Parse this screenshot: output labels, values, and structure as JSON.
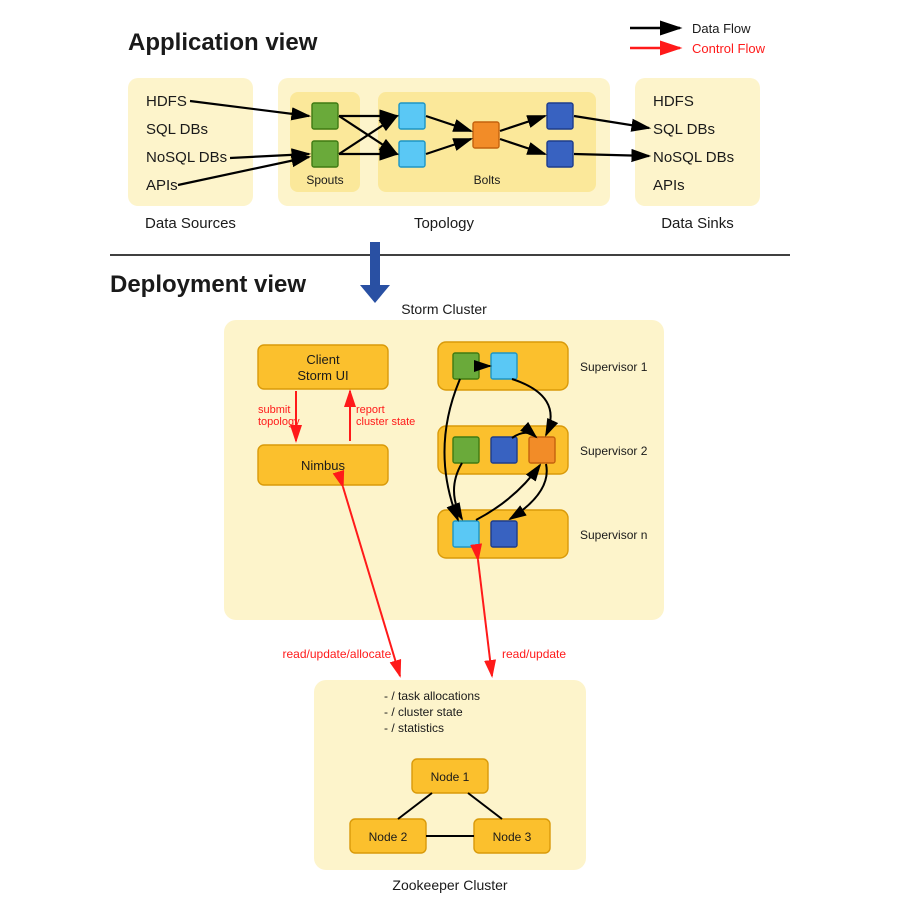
{
  "colors": {
    "boxLight": "#fdf4cb",
    "boxMid": "#fbe89a",
    "boxDark": "#fbc02d",
    "boxDarkStroke": "#d99a0a",
    "green": "#6aaa3a",
    "greenStroke": "#3f7a13",
    "cyan": "#5ac8f5",
    "cyanStroke": "#1d96c5",
    "orange": "#f28c28",
    "orangeStroke": "#c4620e",
    "blue": "#3862c1",
    "blueStroke": "#1d3c8d",
    "black": "#000000",
    "red": "#ff1a1a",
    "bigArrow": "#2950a3",
    "text": "#1a1a1a"
  },
  "legend": {
    "data": "Data Flow",
    "control": "Control Flow"
  },
  "titles": {
    "app": "Application view",
    "dep": "Deployment view"
  },
  "appView": {
    "dataSourcesLabel": "Data Sources",
    "topologyLabel": "Topology",
    "dataSinksLabel": "Data Sinks",
    "spoutsLabel": "Spouts",
    "boltsLabel": "Bolts",
    "sources": [
      "HDFS",
      "SQL DBs",
      "NoSQL DBs",
      "APIs"
    ],
    "sinks": [
      "HDFS",
      "SQL DBs",
      "NoSQL DBs",
      "APIs"
    ]
  },
  "storm": {
    "title": "Storm Cluster",
    "client": [
      "Client",
      "Storm UI"
    ],
    "nimbus": "Nimbus",
    "submit": [
      "submit",
      "topology"
    ],
    "report": [
      "report",
      "cluster state"
    ],
    "sup1": "Supervisor 1",
    "sup2": "Supervisor 2",
    "supn": "Supervisor n",
    "readUpdateAllocate": "read/update/allocate",
    "readUpdate": "read/update"
  },
  "zoo": {
    "title": "Zookeeper Cluster",
    "lines": [
      "- / task allocations",
      "- / cluster state",
      "- / statistics"
    ],
    "n1": "Node 1",
    "n2": "Node 2",
    "n3": "Node 3"
  },
  "sizes": {
    "node": 26,
    "title": 24,
    "label": 15,
    "small": 12,
    "tiny": 11
  }
}
